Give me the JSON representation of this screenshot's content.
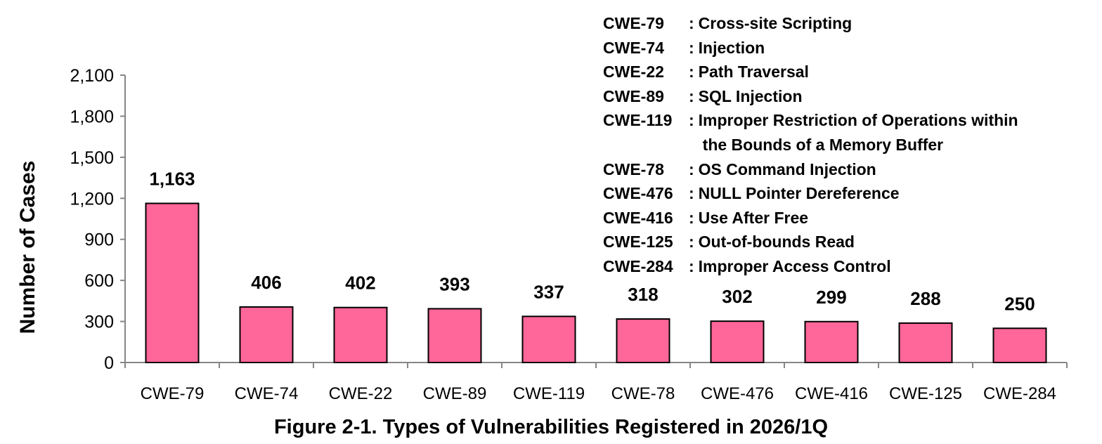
{
  "chart_data": {
    "type": "bar",
    "title": "Figure 2-1. Types of Vulnerabilities Registered in 2026/1Q",
    "xlabel": "",
    "ylabel": "Number of Cases",
    "categories": [
      "CWE-79",
      "CWE-74",
      "CWE-22",
      "CWE-89",
      "CWE-119",
      "CWE-78",
      "CWE-476",
      "CWE-416",
      "CWE-125",
      "CWE-284"
    ],
    "values": [
      1163,
      406,
      402,
      393,
      337,
      318,
      302,
      299,
      288,
      250
    ],
    "value_labels": [
      "1,163",
      "406",
      "402",
      "393",
      "337",
      "318",
      "302",
      "299",
      "288",
      "250"
    ],
    "ylim": [
      0,
      2100
    ],
    "yticks": [
      0,
      300,
      600,
      900,
      1200,
      1500,
      1800,
      2100
    ],
    "ytick_labels": [
      "0",
      "300",
      "600",
      "900",
      "1,200",
      "1,500",
      "1,800",
      "2,100"
    ],
    "grid": false,
    "bar_color": "#ff6699",
    "bar_edge_color": "#000000",
    "legend": {
      "placement": "top-right",
      "entries": [
        {
          "code": "CWE-79",
          "sep": ":",
          "desc": [
            "Cross-site Scripting"
          ]
        },
        {
          "code": "CWE-74",
          "sep": ":",
          "desc": [
            "Injection"
          ]
        },
        {
          "code": "CWE-22",
          "sep": ":",
          "desc": [
            "Path Traversal"
          ]
        },
        {
          "code": "CWE-89",
          "sep": ":",
          "desc": [
            "SQL Injection"
          ]
        },
        {
          "code": "CWE-119",
          "sep": ":",
          "desc": [
            "Improper Restriction of Operations within",
            "the Bounds of a Memory Buffer"
          ]
        },
        {
          "code": "CWE-78",
          "sep": ":",
          "desc": [
            "OS Command Injection"
          ]
        },
        {
          "code": "CWE-476",
          "sep": ":",
          "desc": [
            "NULL Pointer Dereference"
          ]
        },
        {
          "code": "CWE-416",
          "sep": ":",
          "desc": [
            "Use After Free"
          ]
        },
        {
          "code": "CWE-125",
          "sep": ":",
          "desc": [
            "Out-of-bounds Read"
          ]
        },
        {
          "code": "CWE-284",
          "sep": ":",
          "desc": [
            "Improper Access Control"
          ]
        }
      ]
    }
  }
}
